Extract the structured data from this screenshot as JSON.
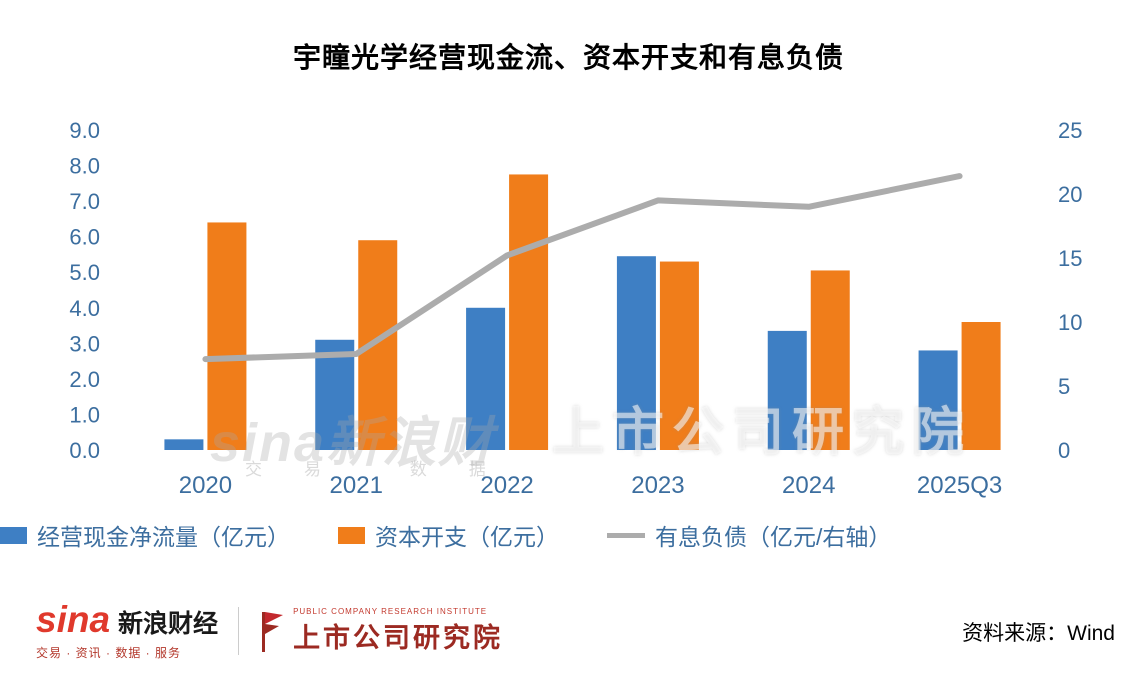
{
  "title": "宇瞳光学经营现金流、资本开支和有息负债",
  "chart_data": {
    "type": "bar",
    "categories": [
      "2020",
      "2021",
      "2022",
      "2023",
      "2024",
      "2025Q3"
    ],
    "series": [
      {
        "name": "经营现金净流量（亿元）",
        "type": "bar",
        "axis": "left",
        "color": "#3E7FC4",
        "values": [
          0.3,
          3.1,
          4.0,
          5.45,
          3.35,
          2.8
        ]
      },
      {
        "name": "资本开支（亿元）",
        "type": "bar",
        "axis": "left",
        "color": "#F07D1A",
        "values": [
          6.4,
          5.9,
          7.75,
          5.3,
          5.05,
          3.6
        ]
      },
      {
        "name": "有息负债（亿元/右轴）",
        "type": "line",
        "axis": "right",
        "color": "#ACACAC",
        "values": [
          7.1,
          7.5,
          15.2,
          19.5,
          19.0,
          21.4
        ]
      }
    ],
    "left_axis": {
      "min": 0,
      "max": 9,
      "step": 1,
      "decimals": 1
    },
    "right_axis": {
      "min": 0,
      "max": 25,
      "step": 5,
      "decimals": 0
    },
    "grid": false,
    "legend_position": "bottom"
  },
  "watermark": {
    "left": "sina新浪财",
    "left_sub": "交易  数据",
    "right": "上市公司研究院"
  },
  "footer": {
    "sina_logo_text": "sina",
    "sina_brand": "新浪财经",
    "sina_tagline": "交易 · 资讯 · 数据 · 服务",
    "institute_name": "上市公司研究院",
    "institute_subtitle": "PUBLIC COMPANY RESEARCH INSTITUTE",
    "source": "资料来源：Wind"
  },
  "colors": {
    "axis_label": "#3C6E9F",
    "bar_blue": "#3E7FC4",
    "bar_orange": "#F07D1A",
    "line_gray": "#ACACAC"
  }
}
